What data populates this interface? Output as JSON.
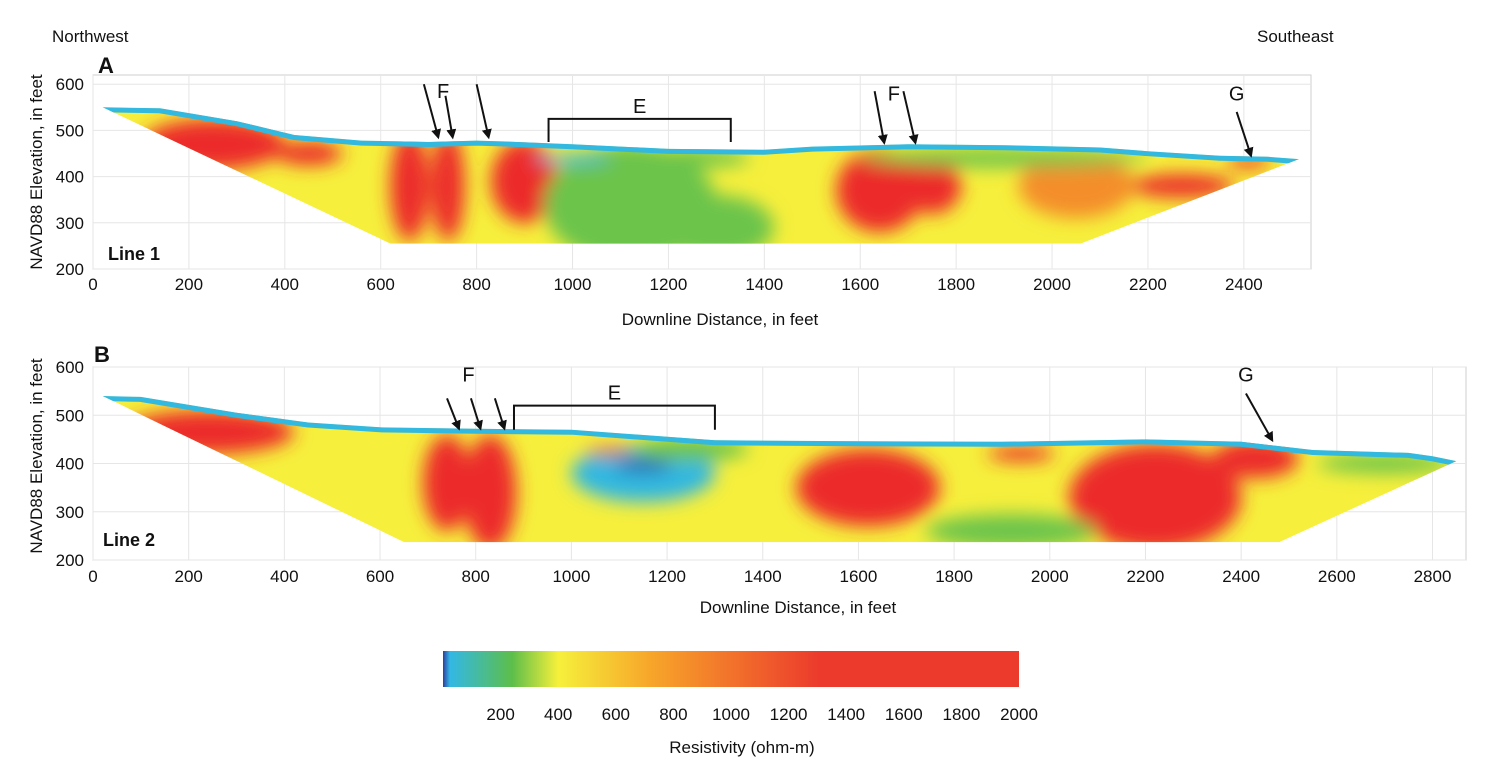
{
  "directions": {
    "left": "Northwest",
    "right": "Southeast"
  },
  "chart_data": [
    {
      "type": "heatmap",
      "panel": "A",
      "line_label": "Line 1",
      "xlabel": "Downline Distance, in feet",
      "ylabel": "NAVD88 Elevation, in feet",
      "xlim": [
        0,
        2540
      ],
      "ylim": [
        200,
        620
      ],
      "x_ticks": [
        "0",
        "200",
        "400",
        "600",
        "800",
        "1000",
        "1200",
        "1400",
        "1600",
        "1800",
        "2000",
        "2200",
        "2400"
      ],
      "y_ticks": [
        "200",
        "300",
        "400",
        "500",
        "600"
      ],
      "surface": [
        [
          20,
          550
        ],
        [
          140,
          548
        ],
        [
          300,
          520
        ],
        [
          420,
          490
        ],
        [
          560,
          478
        ],
        [
          700,
          475
        ],
        [
          800,
          478
        ],
        [
          860,
          476
        ],
        [
          1000,
          470
        ],
        [
          1200,
          460
        ],
        [
          1400,
          458
        ],
        [
          1500,
          465
        ],
        [
          1700,
          470
        ],
        [
          1900,
          468
        ],
        [
          2100,
          463
        ],
        [
          2200,
          455
        ],
        [
          2350,
          445
        ],
        [
          2450,
          443
        ],
        [
          2515,
          438
        ]
      ],
      "bottom": [
        [
          20,
          550
        ],
        [
          620,
          255
        ],
        [
          2060,
          255
        ],
        [
          2515,
          438
        ]
      ],
      "bodies": [
        {
          "x": 250,
          "y": 470,
          "rx": 150,
          "ry": 55,
          "c": "r"
        },
        {
          "x": 450,
          "y": 450,
          "rx": 70,
          "ry": 25,
          "c": "r"
        },
        {
          "x": 660,
          "y": 380,
          "rx": 40,
          "ry": 120,
          "c": "r"
        },
        {
          "x": 740,
          "y": 380,
          "rx": 35,
          "ry": 120,
          "c": "r"
        },
        {
          "x": 900,
          "y": 390,
          "rx": 70,
          "ry": 90,
          "c": "r"
        },
        {
          "x": 1120,
          "y": 340,
          "rx": 180,
          "ry": 130,
          "c": "g"
        },
        {
          "x": 1300,
          "y": 290,
          "rx": 120,
          "ry": 70,
          "c": "g"
        },
        {
          "x": 1000,
          "y": 440,
          "rx": 80,
          "ry": 10,
          "c": "c"
        },
        {
          "x": 1640,
          "y": 370,
          "rx": 90,
          "ry": 90,
          "c": "r"
        },
        {
          "x": 1750,
          "y": 380,
          "rx": 60,
          "ry": 60,
          "c": "r"
        },
        {
          "x": 2050,
          "y": 380,
          "rx": 120,
          "ry": 70,
          "c": "o"
        },
        {
          "x": 2270,
          "y": 380,
          "rx": 110,
          "ry": 25,
          "c": "r"
        },
        {
          "x": 2410,
          "y": 432,
          "rx": 45,
          "ry": 13,
          "c": "r"
        },
        {
          "x": 1900,
          "y": 440,
          "rx": 300,
          "ry": 20,
          "c": "g"
        },
        {
          "x": 1250,
          "y": 440,
          "rx": 120,
          "ry": 20,
          "c": "g"
        }
      ],
      "annotations": [
        {
          "label": "F",
          "text_at": [
            730,
            570
          ],
          "arrows": [
            [
              [
                690,
                600
              ],
              [
                720,
                485
              ]
            ],
            [
              [
                735,
                575
              ],
              [
                750,
                485
              ]
            ],
            [
              [
                800,
                600
              ],
              [
                825,
                485
              ]
            ]
          ]
        },
        {
          "label": "F",
          "text_at": [
            1670,
            565
          ],
          "arrows": [
            [
              [
                1630,
                585
              ],
              [
                1650,
                473
              ]
            ],
            [
              [
                1690,
                585
              ],
              [
                1715,
                473
              ]
            ]
          ]
        },
        {
          "label": "G",
          "text_at": [
            2385,
            565
          ],
          "arrows": [
            [
              [
                2385,
                540
              ],
              [
                2415,
                445
              ]
            ]
          ]
        }
      ],
      "bracket": {
        "label": "E",
        "x_start": 950,
        "x_end": 1330,
        "y": 525,
        "y_end": 475
      }
    },
    {
      "type": "heatmap",
      "panel": "B",
      "line_label": "Line 2",
      "xlabel": "Downline Distance, in feet",
      "ylabel": "NAVD88 Elevation, in feet",
      "xlim": [
        0,
        2870
      ],
      "ylim": [
        200,
        600
      ],
      "x_ticks": [
        "0",
        "200",
        "400",
        "600",
        "800",
        "1000",
        "1200",
        "1400",
        "1600",
        "1800",
        "2000",
        "2200",
        "2400",
        "2600",
        "2800"
      ],
      "y_ticks": [
        "200",
        "300",
        "400",
        "500",
        "600"
      ],
      "surface": [
        [
          20,
          540
        ],
        [
          100,
          538
        ],
        [
          300,
          505
        ],
        [
          450,
          485
        ],
        [
          600,
          475
        ],
        [
          800,
          472
        ],
        [
          1000,
          470
        ],
        [
          1300,
          448
        ],
        [
          1600,
          446
        ],
        [
          1900,
          445
        ],
        [
          2200,
          450
        ],
        [
          2400,
          445
        ],
        [
          2550,
          428
        ],
        [
          2750,
          422
        ],
        [
          2800,
          415
        ],
        [
          2850,
          405
        ]
      ],
      "bottom": [
        [
          20,
          540
        ],
        [
          650,
          237
        ],
        [
          2480,
          237
        ],
        [
          2850,
          405
        ]
      ],
      "bodies": [
        {
          "x": 240,
          "y": 465,
          "rx": 180,
          "ry": 45,
          "c": "r"
        },
        {
          "x": 740,
          "y": 360,
          "rx": 50,
          "ry": 100,
          "c": "r"
        },
        {
          "x": 830,
          "y": 340,
          "rx": 55,
          "ry": 120,
          "c": "r"
        },
        {
          "x": 1150,
          "y": 380,
          "rx": 150,
          "ry": 60,
          "c": "c"
        },
        {
          "x": 1150,
          "y": 395,
          "rx": 60,
          "ry": 12,
          "c": "b"
        },
        {
          "x": 1080,
          "y": 425,
          "rx": 50,
          "ry": 8,
          "c": "r"
        },
        {
          "x": 1620,
          "y": 350,
          "rx": 150,
          "ry": 80,
          "c": "r"
        },
        {
          "x": 2220,
          "y": 330,
          "rx": 180,
          "ry": 110,
          "c": "r"
        },
        {
          "x": 2430,
          "y": 410,
          "rx": 90,
          "ry": 40,
          "c": "r"
        },
        {
          "x": 1940,
          "y": 420,
          "rx": 70,
          "ry": 15,
          "c": "r"
        },
        {
          "x": 1920,
          "y": 260,
          "rx": 180,
          "ry": 35,
          "c": "g"
        },
        {
          "x": 1250,
          "y": 430,
          "rx": 120,
          "ry": 25,
          "c": "g"
        },
        {
          "x": 2700,
          "y": 400,
          "rx": 140,
          "ry": 20,
          "c": "g"
        }
      ],
      "annotations": [
        {
          "label": "F",
          "text_at": [
            785,
            570
          ],
          "arrows": [
            [
              [
                740,
                535
              ],
              [
                765,
                472
              ]
            ],
            [
              [
                790,
                535
              ],
              [
                810,
                472
              ]
            ],
            [
              [
                840,
                535
              ],
              [
                860,
                472
              ]
            ]
          ]
        },
        {
          "label": "G",
          "text_at": [
            2410,
            570
          ],
          "arrows": [
            [
              [
                2410,
                545
              ],
              [
                2465,
                448
              ]
            ]
          ]
        }
      ],
      "bracket": {
        "label": "E",
        "x_start": 880,
        "x_end": 1300,
        "y": 520,
        "y_end": 470
      }
    }
  ],
  "colorbar": {
    "title": "Resistivity (ohm-m)",
    "min": 0,
    "max": 2000,
    "ticks": [
      "200",
      "400",
      "600",
      "800",
      "1000",
      "1200",
      "1400",
      "1600",
      "1800",
      "2000"
    ],
    "stops": [
      "#2b3f9e",
      "#33b8e6",
      "#5dbe4a",
      "#f6f03b",
      "#f7a62a",
      "#ec3b2c"
    ]
  },
  "colors": {
    "r": "#ec2a2a",
    "o": "#f48e2a",
    "y": "#f6ef3c",
    "g": "#6cc44b",
    "c": "#33b8e0",
    "b": "#2b4aa5",
    "frame": "#cfcfcf",
    "grid": "#e6e6e6"
  }
}
